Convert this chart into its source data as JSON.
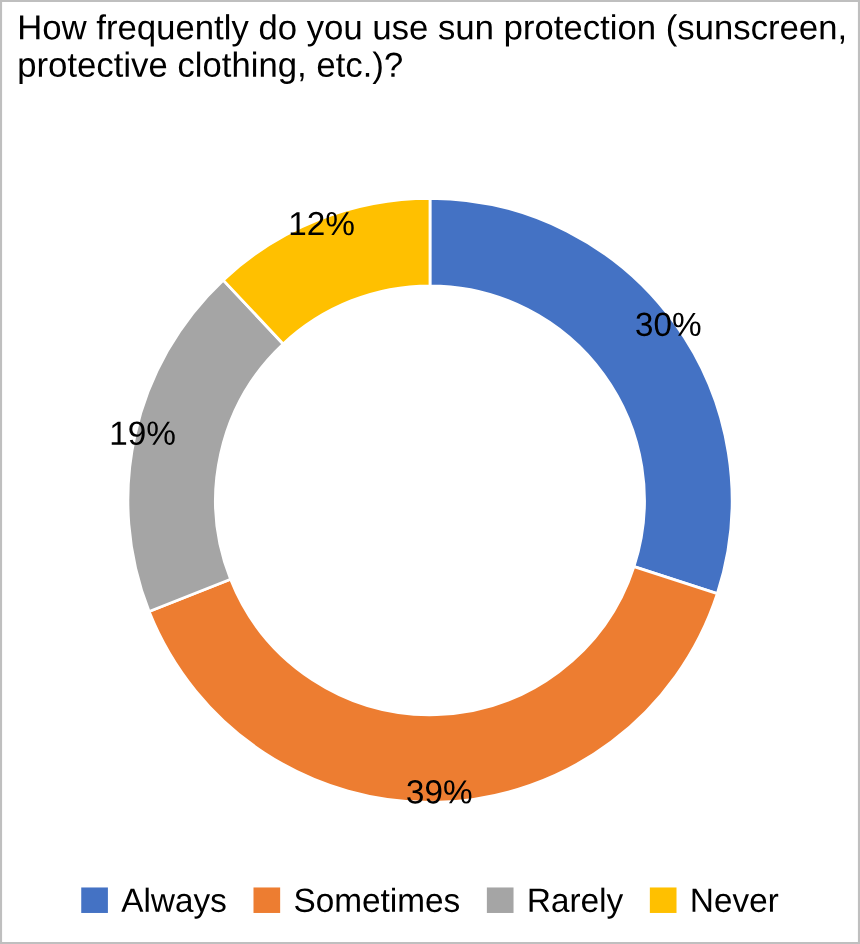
{
  "chart_data": {
    "type": "donut",
    "title": "How frequently do you use sun protection (sunscreen, protective clothing, etc.)?",
    "categories": [
      "Always",
      "Sometimes",
      "Rarely",
      "Never"
    ],
    "values": [
      30,
      39,
      19,
      12
    ],
    "colors": [
      "#4472c4",
      "#ed7d31",
      "#a5a5a5",
      "#ffc000"
    ],
    "value_labels": [
      "30%",
      "39%",
      "19%",
      "12%"
    ],
    "legend": "bottom"
  }
}
